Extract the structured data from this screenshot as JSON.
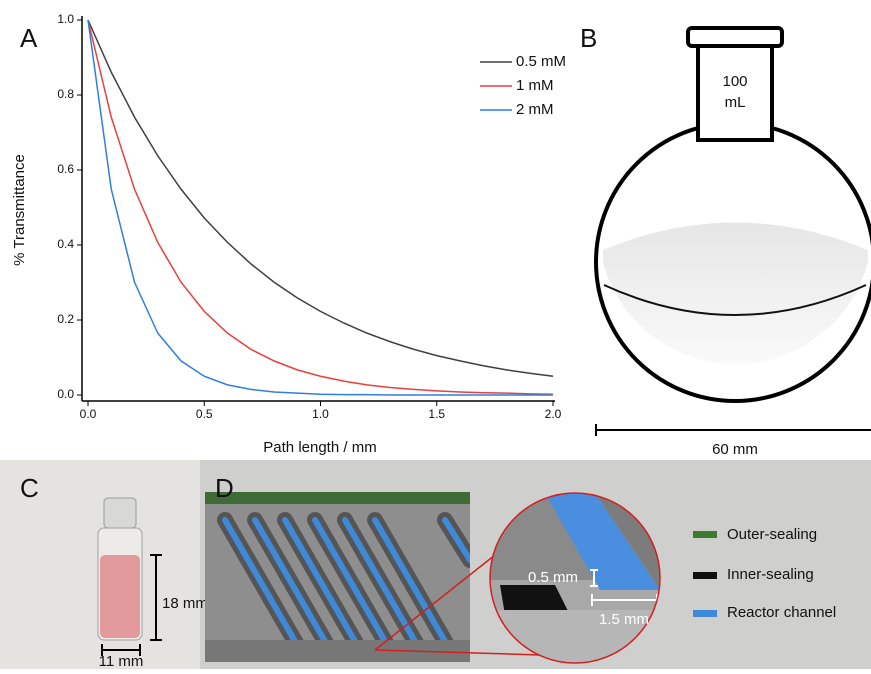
{
  "chart_data": {
    "type": "line",
    "x_label": "Path length / mm",
    "y_label": "% Transmittance",
    "x": [
      0,
      0.1,
      0.2,
      0.3,
      0.4,
      0.5,
      0.6,
      0.7,
      0.8,
      0.9,
      1.0,
      1.1,
      1.2,
      1.3,
      1.4,
      1.5,
      1.6,
      1.7,
      1.8,
      1.9,
      2.0
    ],
    "series": [
      {
        "name": "0.5 mM",
        "color": "#404040",
        "values": [
          1,
          0.861,
          0.741,
          0.638,
          0.549,
          0.472,
          0.407,
          0.35,
          0.301,
          0.259,
          0.223,
          0.192,
          0.165,
          0.142,
          0.122,
          0.105,
          0.091,
          0.078,
          0.067,
          0.058,
          0.05
        ]
      },
      {
        "name": "1 mM",
        "color": "#e8403c",
        "values": [
          1,
          0.741,
          0.549,
          0.407,
          0.301,
          0.223,
          0.165,
          0.122,
          0.091,
          0.067,
          0.05,
          0.037,
          0.027,
          0.02,
          0.015,
          0.011,
          0.008,
          0.006,
          0.005,
          0.003,
          0.002
        ]
      },
      {
        "name": "2 mM",
        "color": "#2f7fe0",
        "values": [
          1,
          0.549,
          0.301,
          0.165,
          0.091,
          0.05,
          0.027,
          0.015,
          0.008,
          0.005,
          0.002,
          0.001,
          0.001,
          0,
          0,
          0,
          0,
          0,
          0,
          0,
          0
        ]
      }
    ],
    "xlim": [
      0,
      2
    ],
    "ylim": [
      0,
      1
    ],
    "xticks": [
      {
        "value": 0,
        "label": "0.0"
      },
      {
        "value": 0.5,
        "label": "0.5"
      },
      {
        "value": 1,
        "label": "1.0"
      },
      {
        "value": 1.5,
        "label": "1.5"
      },
      {
        "value": 2,
        "label": "2.0"
      }
    ],
    "yticks": [
      {
        "value": 0,
        "label": "0.0"
      },
      {
        "value": 0.2,
        "label": "0.2"
      },
      {
        "value": 0.4,
        "label": "0.4"
      },
      {
        "value": 0.6,
        "label": "0.6"
      },
      {
        "value": 0.8,
        "label": "0.8"
      },
      {
        "value": 1,
        "label": "1.0"
      }
    ],
    "legend": "upper right"
  },
  "panel_labels": [
    "A",
    "B",
    "C",
    "D"
  ],
  "flask": {
    "volume_value": "100",
    "volume_unit": "mL",
    "scale": "60 mm"
  },
  "vial": {
    "height": "18 mm",
    "width": "11 mm"
  },
  "reactor": {
    "depth": "0.5 mm",
    "width": "1.5 mm",
    "legend": [
      "Outer-sealing",
      "Inner-sealing",
      "Reactor channel"
    ]
  }
}
